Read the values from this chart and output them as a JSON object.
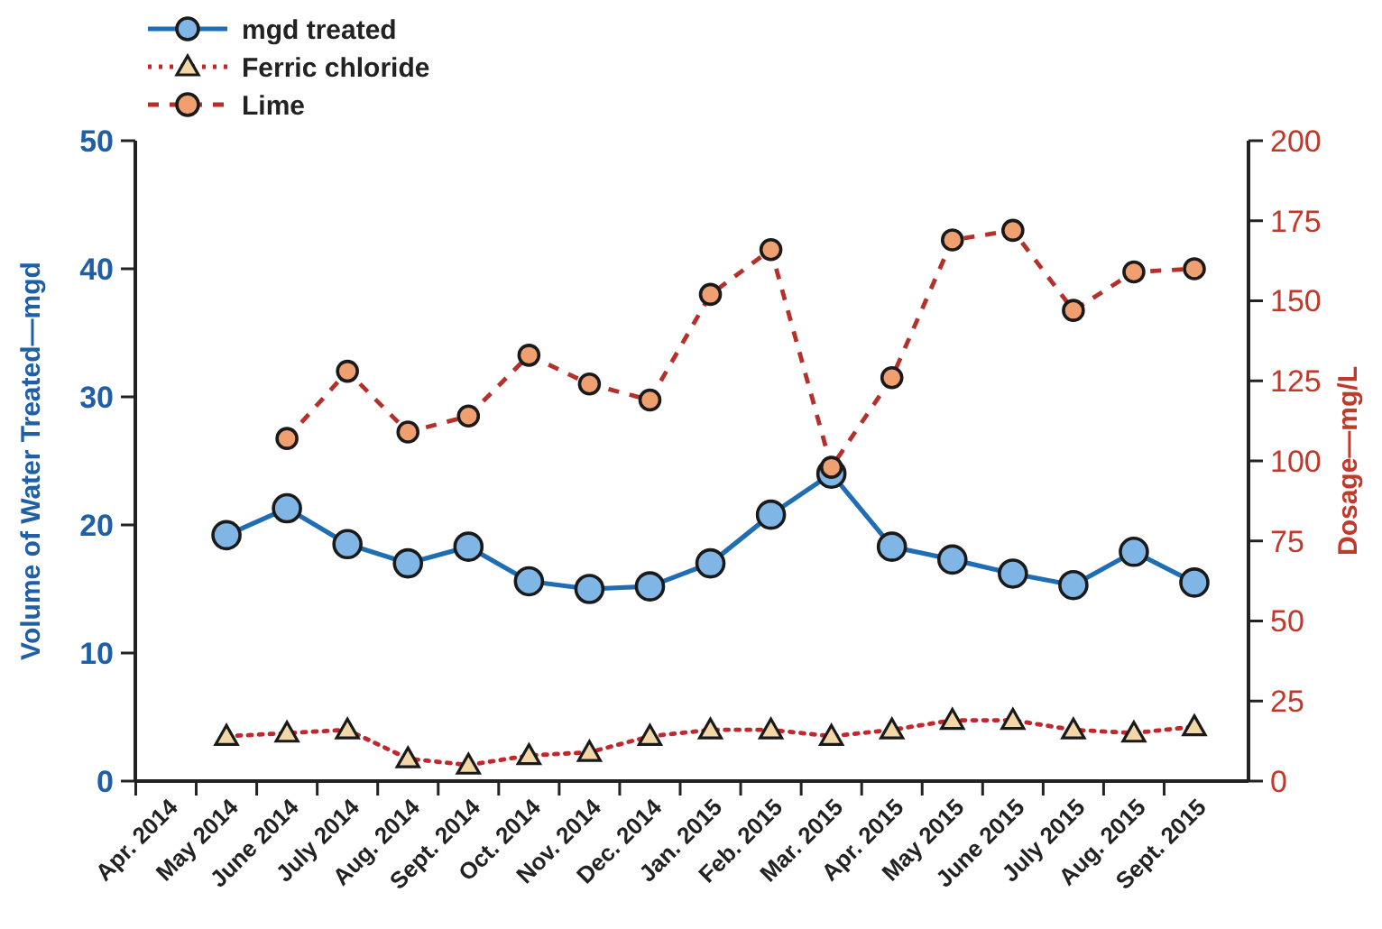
{
  "chart_data": {
    "type": "line",
    "categories": [
      "Apr. 2014",
      "May 2014",
      "June 2014",
      "July 2014",
      "Aug. 2014",
      "Sept. 2014",
      "Oct. 2014",
      "Nov. 2014",
      "Dec. 2014",
      "Jan. 2015",
      "Feb. 2015",
      "Mar. 2015",
      "Apr. 2015",
      "May 2015",
      "June 2015",
      "July 2015",
      "Aug. 2015",
      "Sept. 2015"
    ],
    "ylabel": "Volume of Water Treated—mgd",
    "y2label": "Dosage—mg/L",
    "ylim": [
      0,
      50
    ],
    "yticks": [
      0,
      10,
      20,
      30,
      40,
      50
    ],
    "y2lim": [
      0,
      200
    ],
    "y2ticks": [
      0,
      25,
      50,
      75,
      100,
      125,
      150,
      175,
      200
    ],
    "legend": "top left",
    "grid": false,
    "series": [
      {
        "name": "mgd treated",
        "color": "#1f6db5",
        "marker": "circle",
        "line_style": "solid",
        "values": [
          null,
          19.2,
          21.3,
          18.5,
          17.0,
          18.3,
          15.6,
          15.0,
          15.2,
          17.0,
          20.8,
          24.0,
          18.3,
          17.3,
          16.2,
          15.3,
          17.9,
          15.5
        ]
      },
      {
        "name": "Ferric chloride",
        "color": "#c0282d",
        "marker": "triangle",
        "line_style": "dotted",
        "axis": "y2",
        "values": [
          null,
          14,
          15,
          16,
          7,
          5,
          8,
          9,
          14,
          16,
          16,
          14,
          16,
          19,
          19,
          16,
          15,
          17
        ]
      },
      {
        "name": "Lime",
        "color": "#b5302b",
        "marker": "circle",
        "line_style": "dashed",
        "axis": "y2",
        "values": [
          null,
          null,
          107,
          128,
          109,
          114,
          133,
          124,
          119,
          152,
          166,
          98,
          126,
          169,
          172,
          147,
          159,
          160
        ]
      }
    ]
  }
}
